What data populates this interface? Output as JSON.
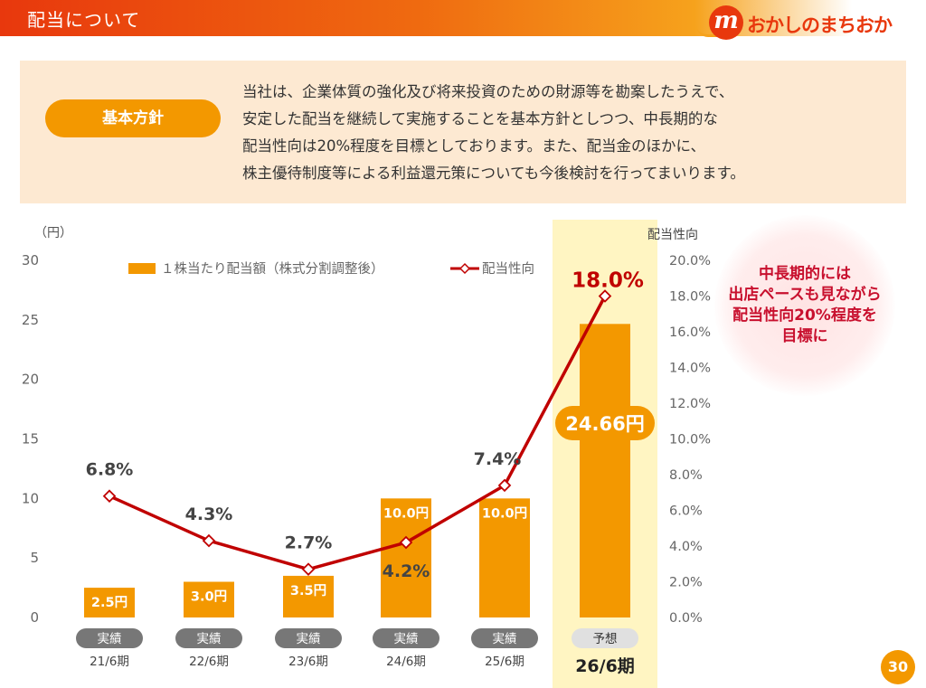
{
  "header": {
    "title": "配当について",
    "logo_mark": "m",
    "logo_text": "おかしのまちおか"
  },
  "policy": {
    "label": "基本方針",
    "lines": [
      "当社は、企業体質の強化及び将来投資のための財源等を勘案したうえで、",
      "安定した配当を継続して実施することを基本方針としつつ、中長期的な",
      "配当性向は20%程度を目標としております。また、配当金のほかに、",
      "株主優待制度等による利益還元策についても今後検討を行ってまいります。"
    ]
  },
  "callout": {
    "lines": [
      "中長期的には",
      "出店ペースも見ながら",
      "配当性向20%程度を",
      "目標に"
    ]
  },
  "page_number": "30",
  "chart_data": {
    "type": "bar",
    "categories": [
      "21/6期",
      "22/6期",
      "23/6期",
      "24/6期",
      "25/6期",
      "26/6期"
    ],
    "status_labels": [
      "実績",
      "実績",
      "実績",
      "実績",
      "実績",
      "予想"
    ],
    "left_axis": {
      "unit_label": "（円）",
      "ylim": [
        0,
        30
      ],
      "ticks": [
        "0",
        "5",
        "10",
        "15",
        "20",
        "25",
        "30"
      ]
    },
    "right_axis": {
      "title": "配当性向",
      "ylim": [
        0,
        20
      ],
      "ticks": [
        "0.0%",
        "2.0%",
        "4.0%",
        "6.0%",
        "8.0%",
        "10.0%",
        "12.0%",
        "14.0%",
        "16.0%",
        "18.0%",
        "20.0%"
      ]
    },
    "series": [
      {
        "name": "１株当たり配当額（株式分割調整後）",
        "type": "bar",
        "axis": "left",
        "color": "#f39800",
        "values": [
          2.5,
          3.0,
          3.5,
          10.0,
          10.0,
          24.66
        ],
        "labels": [
          "2.5円",
          "3.0円",
          "3.5円",
          "10.0円",
          "10.0円",
          "24.66円"
        ]
      },
      {
        "name": "配当性向",
        "type": "line",
        "axis": "right",
        "color": "#c00000",
        "values": [
          6.8,
          4.3,
          2.7,
          4.2,
          7.4,
          18.0
        ],
        "labels": [
          "6.8%",
          "4.3%",
          "2.7%",
          "4.2%",
          "7.4%",
          "18.0%"
        ]
      }
    ],
    "forecast_highlight_color": "#fff5c2",
    "grid": false,
    "legend_position": "top"
  }
}
